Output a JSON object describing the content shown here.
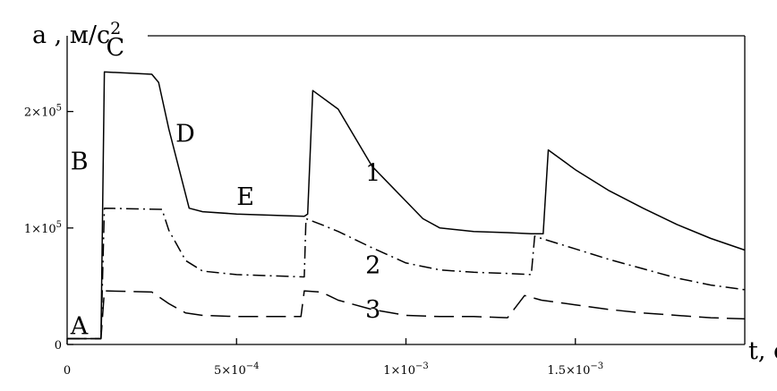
{
  "chart_data": {
    "type": "line",
    "ylabel": "a , м/с",
    "ylabel_exp": "2",
    "xlabel": "t, c",
    "xlim": [
      0,
      0.002
    ],
    "ylim": [
      0,
      265000
    ],
    "grid": false,
    "x_ticks": [
      {
        "value": 0,
        "label_base": "0",
        "label_exp": ""
      },
      {
        "value": 0.0005,
        "label_base": "5×10",
        "label_exp": "−4"
      },
      {
        "value": 0.001,
        "label_base": "1×10",
        "label_exp": "−3"
      },
      {
        "value": 0.0015,
        "label_base": "1.5×10",
        "label_exp": "−3"
      }
    ],
    "y_ticks": [
      {
        "value": 0,
        "label_base": "0",
        "label_exp": ""
      },
      {
        "value": 100000,
        "label_base": "1×10",
        "label_exp": "5"
      },
      {
        "value": 200000,
        "label_base": "2×10",
        "label_exp": "5"
      }
    ],
    "series": [
      {
        "name": "1",
        "style": "solid",
        "x": [
          0,
          0.0001,
          0.00011,
          0.00025,
          0.00027,
          0.0003,
          0.00036,
          0.0004,
          0.0005,
          0.0006,
          0.0007,
          0.00071,
          0.000725,
          0.0008,
          0.0009,
          0.001,
          0.00105,
          0.0011,
          0.0012,
          0.0013,
          0.00137,
          0.00138,
          0.001405,
          0.00142,
          0.0015,
          0.0016,
          0.0017,
          0.0018,
          0.0019,
          0.002
        ],
        "y": [
          5000,
          5000,
          234000,
          232000,
          225000,
          185000,
          117000,
          114000,
          112000,
          111000,
          110000,
          112000,
          218000,
          202000,
          153000,
          123000,
          108000,
          100000,
          97000,
          96000,
          95000,
          95000,
          95000,
          167000,
          150000,
          132000,
          117000,
          103000,
          91000,
          81000
        ]
      },
      {
        "name": "2",
        "style": "dashdot",
        "x": [
          0,
          0.0001,
          0.00011,
          0.00028,
          0.0003,
          0.00035,
          0.0004,
          0.0005,
          0.0006,
          0.0007,
          0.000705,
          0.00075,
          0.0008,
          0.0009,
          0.001,
          0.0011,
          0.0012,
          0.0013,
          0.00137,
          0.00138,
          0.0014,
          0.0015,
          0.0016,
          0.0017,
          0.0018,
          0.0019,
          0.002
        ],
        "y": [
          5000,
          5000,
          117000,
          116000,
          98000,
          72000,
          63000,
          60000,
          59000,
          58000,
          108000,
          103000,
          97000,
          83000,
          70000,
          64000,
          62000,
          61000,
          60000,
          93000,
          91000,
          82000,
          73000,
          65000,
          57000,
          51000,
          47000
        ]
      },
      {
        "name": "3",
        "style": "dashed",
        "x": [
          0,
          0.0001,
          0.00011,
          0.00025,
          0.0003,
          0.00035,
          0.0004,
          0.0005,
          0.0006,
          0.00069,
          0.0007,
          0.00075,
          0.0008,
          0.0009,
          0.001,
          0.0011,
          0.0012,
          0.0013,
          0.00135,
          0.0014,
          0.0015,
          0.0016,
          0.0017,
          0.0018,
          0.0019,
          0.002
        ],
        "y": [
          5000,
          5000,
          46000,
          45000,
          35000,
          27000,
          25000,
          24000,
          24000,
          24000,
          46000,
          45000,
          38000,
          30000,
          25000,
          24000,
          24000,
          23000,
          42000,
          38000,
          34000,
          30000,
          27000,
          25000,
          23000,
          22000
        ]
      }
    ],
    "annotations": [
      {
        "text": "A",
        "x": 1e-05,
        "y": 9000
      },
      {
        "text": "B",
        "x": 1e-05,
        "y": 150000
      },
      {
        "text": "C",
        "x": 0.000115,
        "y": 248000
      },
      {
        "text": "D",
        "x": 0.00032,
        "y": 174000
      },
      {
        "text": "E",
        "x": 0.0005,
        "y": 120000
      },
      {
        "text": "1",
        "x": 0.00088,
        "y": 140000
      },
      {
        "text": "2",
        "x": 0.00088,
        "y": 61000
      },
      {
        "text": "3",
        "x": 0.00088,
        "y": 23000
      }
    ]
  }
}
